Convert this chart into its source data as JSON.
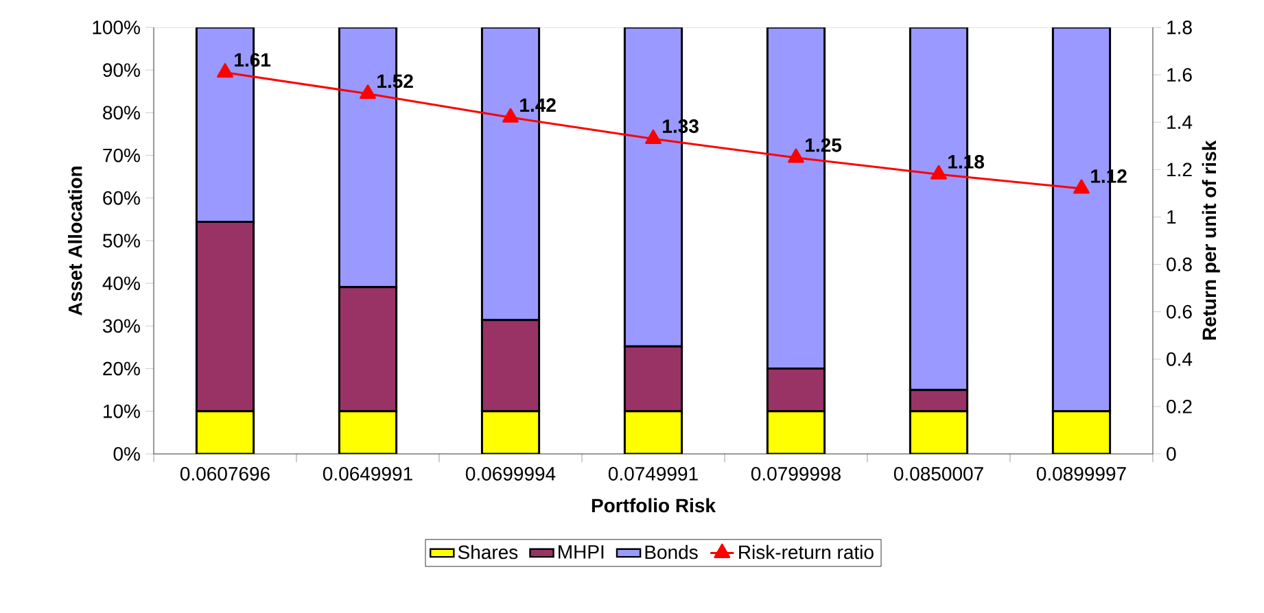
{
  "chart_data": {
    "type": "bar",
    "stacked": true,
    "categories": [
      "0.0607696",
      "0.0649991",
      "0.0699994",
      "0.0749991",
      "0.0799998",
      "0.0850007",
      "0.0899997"
    ],
    "xlabel": "Portfolio Risk",
    "ylabel": "Asset Allocation",
    "y2label": "Return per unit of risk",
    "ylim": [
      0,
      100
    ],
    "yticks": [
      {
        "value": 0,
        "label": "0%"
      },
      {
        "value": 10,
        "label": "10%"
      },
      {
        "value": 20,
        "label": "20%"
      },
      {
        "value": 30,
        "label": "30%"
      },
      {
        "value": 40,
        "label": "40%"
      },
      {
        "value": 50,
        "label": "50%"
      },
      {
        "value": 60,
        "label": "60%"
      },
      {
        "value": 70,
        "label": "70%"
      },
      {
        "value": 80,
        "label": "80%"
      },
      {
        "value": 90,
        "label": "90%"
      },
      {
        "value": 100,
        "label": "100%"
      }
    ],
    "y2lim": [
      0,
      1.8
    ],
    "y2ticks": [
      0,
      0.2,
      0.4,
      0.6,
      0.8,
      1,
      1.2,
      1.4,
      1.6,
      1.8
    ],
    "series": [
      {
        "name": "Shares",
        "color": "#ffff00",
        "values": [
          10,
          10,
          10,
          10,
          10,
          10,
          10
        ]
      },
      {
        "name": "MHPI",
        "color": "#993366",
        "values": [
          44.4,
          29.1,
          21.4,
          15.2,
          10,
          5,
          0
        ]
      },
      {
        "name": "Bonds",
        "color": "#9999ff",
        "values": [
          45.6,
          60.9,
          68.6,
          74.8,
          80,
          85,
          90
        ]
      },
      {
        "name": "Risk-return ratio",
        "type": "line",
        "axis": "y2",
        "color": "#ff0000",
        "marker": "triangle",
        "values": [
          1.61,
          1.52,
          1.42,
          1.33,
          1.25,
          1.18,
          1.12
        ],
        "value_labels": [
          "1.61",
          "1.52",
          "1.42",
          "1.33",
          "1.25",
          "1.18",
          "1.12"
        ]
      }
    ],
    "grid": false,
    "legend": "bottom"
  }
}
